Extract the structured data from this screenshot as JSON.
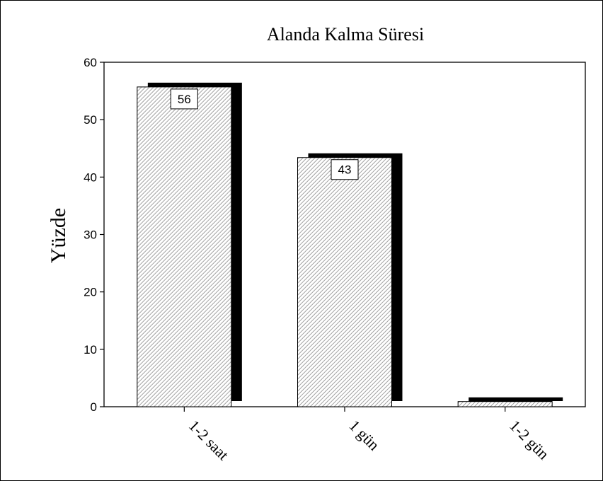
{
  "chart_data": {
    "type": "bar",
    "title": "Alanda Kalma Süresi",
    "xlabel": "",
    "ylabel": "Yüzde",
    "categories": [
      "1-2 saat",
      "1 gün",
      "1-2 gün"
    ],
    "values": [
      55.7,
      43.4,
      0.9
    ],
    "data_labels": [
      "56",
      "43",
      ""
    ],
    "ylim": [
      0,
      60
    ],
    "yticks": [
      0,
      10,
      20,
      30,
      40,
      50,
      60
    ],
    "grid": false,
    "legend": "none",
    "colors": {
      "bar_fill": "#d9d9d9",
      "bar_shadow": "#000000",
      "axis": "#000000"
    }
  }
}
